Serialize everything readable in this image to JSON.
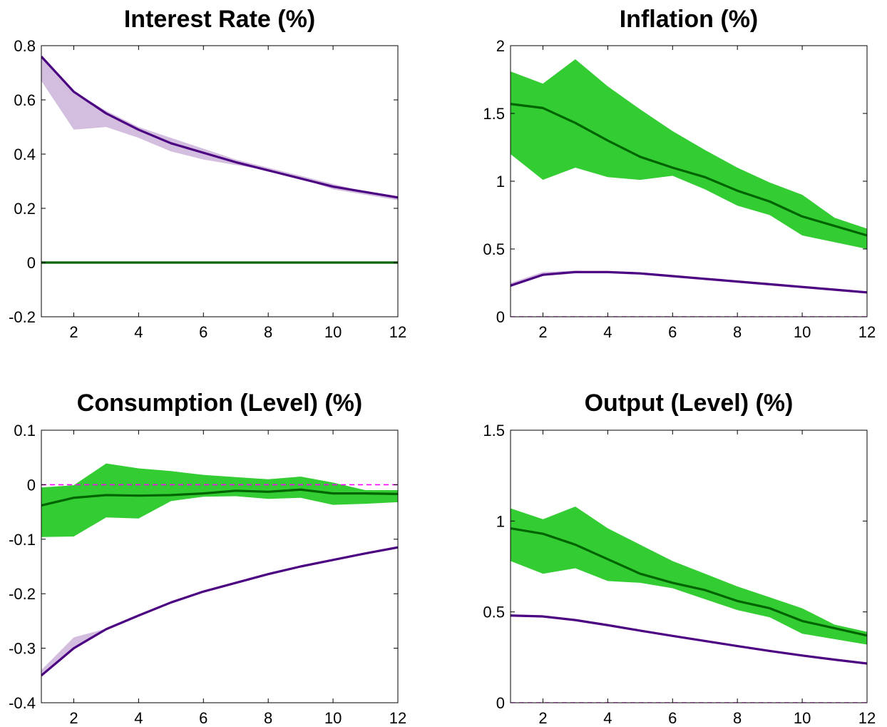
{
  "chart_data": [
    {
      "type": "line",
      "title": "Interest Rate (%)",
      "xlabel": "",
      "ylabel": "",
      "xlim": [
        1,
        12
      ],
      "ylim": [
        -0.2,
        0.8
      ],
      "xticks": [
        2,
        4,
        6,
        8,
        10,
        12
      ],
      "xtick_labels": [
        "2",
        "4",
        "6",
        "8",
        "10",
        "12"
      ],
      "yticks": [
        -0.2,
        0,
        0.2,
        0.4,
        0.6,
        0.8
      ],
      "ytick_labels": [
        "-0.2",
        "0",
        "0.2",
        "0.4",
        "0.6",
        "0.8"
      ],
      "grid": false,
      "x": [
        1,
        2,
        3,
        4,
        5,
        6,
        7,
        8,
        9,
        10,
        11,
        12
      ],
      "zero_line": 0,
      "bands": [
        {
          "color": "#d3bedf",
          "lower": [
            0.67,
            0.49,
            0.5,
            0.46,
            0.41,
            0.38,
            0.36,
            0.34,
            0.31,
            0.27,
            0.25,
            0.23
          ],
          "upper": [
            0.76,
            0.63,
            0.56,
            0.5,
            0.46,
            0.42,
            0.38,
            0.35,
            0.32,
            0.29,
            0.26,
            0.24
          ]
        },
        {
          "color": "#33cc33",
          "lower": [
            0,
            0,
            0,
            0,
            0,
            0,
            0,
            0,
            0,
            0,
            0,
            0
          ],
          "upper": [
            0,
            0,
            0,
            0,
            0,
            0,
            0,
            0,
            0,
            0,
            0,
            0
          ]
        }
      ],
      "series": [
        {
          "color": "#4b0082",
          "values": [
            0.76,
            0.63,
            0.55,
            0.49,
            0.44,
            0.405,
            0.37,
            0.34,
            0.31,
            0.28,
            0.26,
            0.24
          ]
        },
        {
          "color": "#006400",
          "values": [
            0,
            0,
            0,
            0,
            0,
            0,
            0,
            0,
            0,
            0,
            0,
            0
          ]
        }
      ]
    },
    {
      "type": "line",
      "title": "Inflation (%)",
      "xlabel": "",
      "ylabel": "",
      "xlim": [
        1,
        12
      ],
      "ylim": [
        0,
        2
      ],
      "xticks": [
        2,
        4,
        6,
        8,
        10,
        12
      ],
      "xtick_labels": [
        "2",
        "4",
        "6",
        "8",
        "10",
        "12"
      ],
      "yticks": [
        0,
        0.5,
        1,
        1.5,
        2
      ],
      "ytick_labels": [
        "0",
        "0.5",
        "1",
        "1.5",
        "2"
      ],
      "grid": false,
      "x": [
        1,
        2,
        3,
        4,
        5,
        6,
        7,
        8,
        9,
        10,
        11,
        12
      ],
      "zero_line": 0,
      "bands": [
        {
          "color": "#d3bedf",
          "lower": [
            0.22,
            0.3,
            0.32,
            0.32,
            0.31,
            0.29,
            0.27,
            0.25,
            0.23,
            0.21,
            0.19,
            0.17
          ],
          "upper": [
            0.25,
            0.33,
            0.34,
            0.33,
            0.32,
            0.3,
            0.28,
            0.26,
            0.24,
            0.22,
            0.2,
            0.18
          ]
        },
        {
          "color": "#33cc33",
          "lower": [
            1.2,
            1.01,
            1.1,
            1.03,
            1.01,
            1.04,
            0.94,
            0.82,
            0.75,
            0.6,
            0.55,
            0.5
          ],
          "upper": [
            1.81,
            1.72,
            1.9,
            1.7,
            1.53,
            1.37,
            1.23,
            1.1,
            0.99,
            0.9,
            0.73,
            0.65
          ]
        }
      ],
      "series": [
        {
          "color": "#4b0082",
          "values": [
            0.23,
            0.31,
            0.33,
            0.33,
            0.32,
            0.3,
            0.28,
            0.26,
            0.24,
            0.22,
            0.2,
            0.18
          ]
        },
        {
          "color": "#006400",
          "values": [
            1.57,
            1.54,
            1.43,
            1.3,
            1.18,
            1.1,
            1.03,
            0.93,
            0.85,
            0.74,
            0.67,
            0.6
          ]
        }
      ]
    },
    {
      "type": "line",
      "title": "Consumption (Level) (%)",
      "xlabel": "",
      "ylabel": "",
      "xlim": [
        1,
        12
      ],
      "ylim": [
        -0.4,
        0.1
      ],
      "xticks": [
        2,
        4,
        6,
        8,
        10,
        12
      ],
      "xtick_labels": [
        "2",
        "4",
        "6",
        "8",
        "10",
        "12"
      ],
      "yticks": [
        -0.4,
        -0.3,
        -0.2,
        -0.1,
        0,
        0.1
      ],
      "ytick_labels": [
        "-0.4",
        "-0.3",
        "-0.2",
        "-0.1",
        "0",
        "0.1"
      ],
      "grid": false,
      "x": [
        1,
        2,
        3,
        4,
        5,
        6,
        7,
        8,
        9,
        10,
        11,
        12
      ],
      "zero_line": 0,
      "bands": [
        {
          "color": "#d3bedf",
          "lower": [
            -0.352,
            -0.302,
            -0.267,
            -0.241,
            -0.217,
            -0.197,
            -0.181,
            -0.165,
            -0.151,
            -0.139,
            -0.127,
            -0.116
          ],
          "upper": [
            -0.34,
            -0.28,
            -0.264,
            -0.238,
            -0.215,
            -0.195,
            -0.179,
            -0.164,
            -0.15,
            -0.138,
            -0.126,
            -0.115
          ]
        },
        {
          "color": "#33cc33",
          "lower": [
            -0.096,
            -0.095,
            -0.06,
            -0.062,
            -0.03,
            -0.022,
            -0.021,
            -0.026,
            -0.024,
            -0.037,
            -0.035,
            -0.032
          ],
          "upper": [
            -0.005,
            -0.001,
            0.039,
            0.03,
            0.025,
            0.018,
            0.014,
            0.01,
            0.015,
            0.004,
            -0.01,
            -0.01
          ]
        }
      ],
      "series": [
        {
          "color": "#4b0082",
          "values": [
            -0.35,
            -0.3,
            -0.265,
            -0.24,
            -0.216,
            -0.196,
            -0.18,
            -0.164,
            -0.15,
            -0.138,
            -0.126,
            -0.115
          ]
        },
        {
          "color": "#006400",
          "values": [
            -0.038,
            -0.024,
            -0.019,
            -0.02,
            -0.019,
            -0.016,
            -0.011,
            -0.013,
            -0.009,
            -0.016,
            -0.016,
            -0.017
          ]
        }
      ]
    },
    {
      "type": "line",
      "title": "Output (Level) (%)",
      "xlabel": "",
      "ylabel": "",
      "xlim": [
        1,
        12
      ],
      "ylim": [
        0,
        1.5
      ],
      "xticks": [
        2,
        4,
        6,
        8,
        10,
        12
      ],
      "xtick_labels": [
        "2",
        "4",
        "6",
        "8",
        "10",
        "12"
      ],
      "yticks": [
        0,
        0.5,
        1,
        1.5
      ],
      "ytick_labels": [
        "0",
        "0.5",
        "1",
        "1.5"
      ],
      "grid": false,
      "x": [
        1,
        2,
        3,
        4,
        5,
        6,
        7,
        8,
        9,
        10,
        11,
        12
      ],
      "zero_line": 0,
      "bands": [
        {
          "color": "#d3bedf",
          "lower": [
            0.475,
            0.47,
            0.45,
            0.423,
            0.395,
            0.366,
            0.338,
            0.31,
            0.283,
            0.259,
            0.236,
            0.214
          ],
          "upper": [
            0.485,
            0.48,
            0.458,
            0.43,
            0.4,
            0.37,
            0.342,
            0.314,
            0.287,
            0.262,
            0.239,
            0.218
          ]
        },
        {
          "color": "#33cc33",
          "lower": [
            0.78,
            0.71,
            0.74,
            0.67,
            0.66,
            0.63,
            0.57,
            0.51,
            0.47,
            0.38,
            0.35,
            0.32
          ],
          "upper": [
            1.07,
            1.01,
            1.08,
            0.96,
            0.87,
            0.78,
            0.71,
            0.64,
            0.58,
            0.52,
            0.43,
            0.39
          ]
        }
      ],
      "series": [
        {
          "color": "#4b0082",
          "values": [
            0.48,
            0.475,
            0.455,
            0.427,
            0.397,
            0.368,
            0.34,
            0.312,
            0.285,
            0.26,
            0.237,
            0.216
          ]
        },
        {
          "color": "#006400",
          "values": [
            0.96,
            0.93,
            0.87,
            0.79,
            0.71,
            0.66,
            0.62,
            0.56,
            0.52,
            0.45,
            0.41,
            0.37
          ]
        }
      ]
    }
  ]
}
